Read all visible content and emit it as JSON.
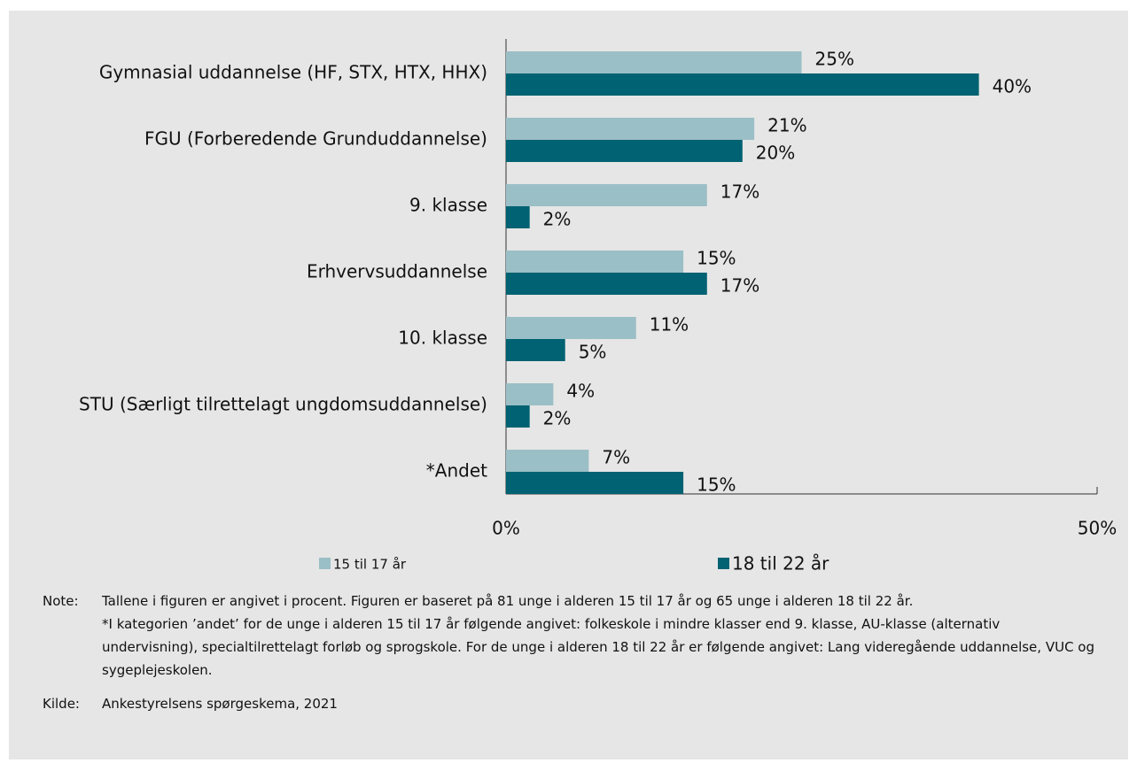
{
  "chart_data": {
    "type": "bar",
    "orientation": "horizontal",
    "categories": [
      "Gymnasial uddannelse (HF, STX, HTX, HHX)",
      "FGU (Forberedende Grunduddannelse)",
      "9. klasse",
      "Erhvervsuddannelse",
      "10. klasse",
      "STU (Særligt tilrettelagt ungdomsuddannelse)",
      "*Andet"
    ],
    "series": [
      {
        "name": "15 til 17 år",
        "color": "#9bbfc6",
        "values": [
          25,
          21,
          17,
          15,
          11,
          4,
          7
        ],
        "value_labels": [
          "25%",
          "21%",
          "17%",
          "15%",
          "11%",
          "4%",
          "7%"
        ]
      },
      {
        "name": "18 til 22 år",
        "color": "#006272",
        "values": [
          40,
          20,
          2,
          17,
          5,
          2,
          15
        ],
        "value_labels": [
          "40%",
          "20%",
          "2%",
          "17%",
          "5%",
          "2%",
          "15%"
        ]
      }
    ],
    "xlim": [
      0,
      50
    ],
    "xticks": [
      {
        "value": 0,
        "label": "0%"
      },
      {
        "value": 50,
        "label": "50%"
      }
    ],
    "legend": "bottom",
    "note": {
      "label": "Note:",
      "paragraphs": [
        "Tallene i figuren er angivet i procent. Figuren er baseret på 81 unge i alderen 15 til 17 år og 65 unge i alderen 18 til 22 år.",
        "*I kategorien ’andet’ for de unge i alderen 15 til 17 år følgende angivet: folkeskole i mindre klasser end 9. klasse, AU-klasse (alternativ undervisning), specialtilrettelagt forløb og sprogskole. For de unge i alderen 18 til 22 år er følgende angivet: Lang videregående uddannelse, VUC og sygeplejeskolen."
      ]
    },
    "source": {
      "label": "Kilde:",
      "text": "Ankestyrelsens spørgeskema, 2021"
    }
  }
}
